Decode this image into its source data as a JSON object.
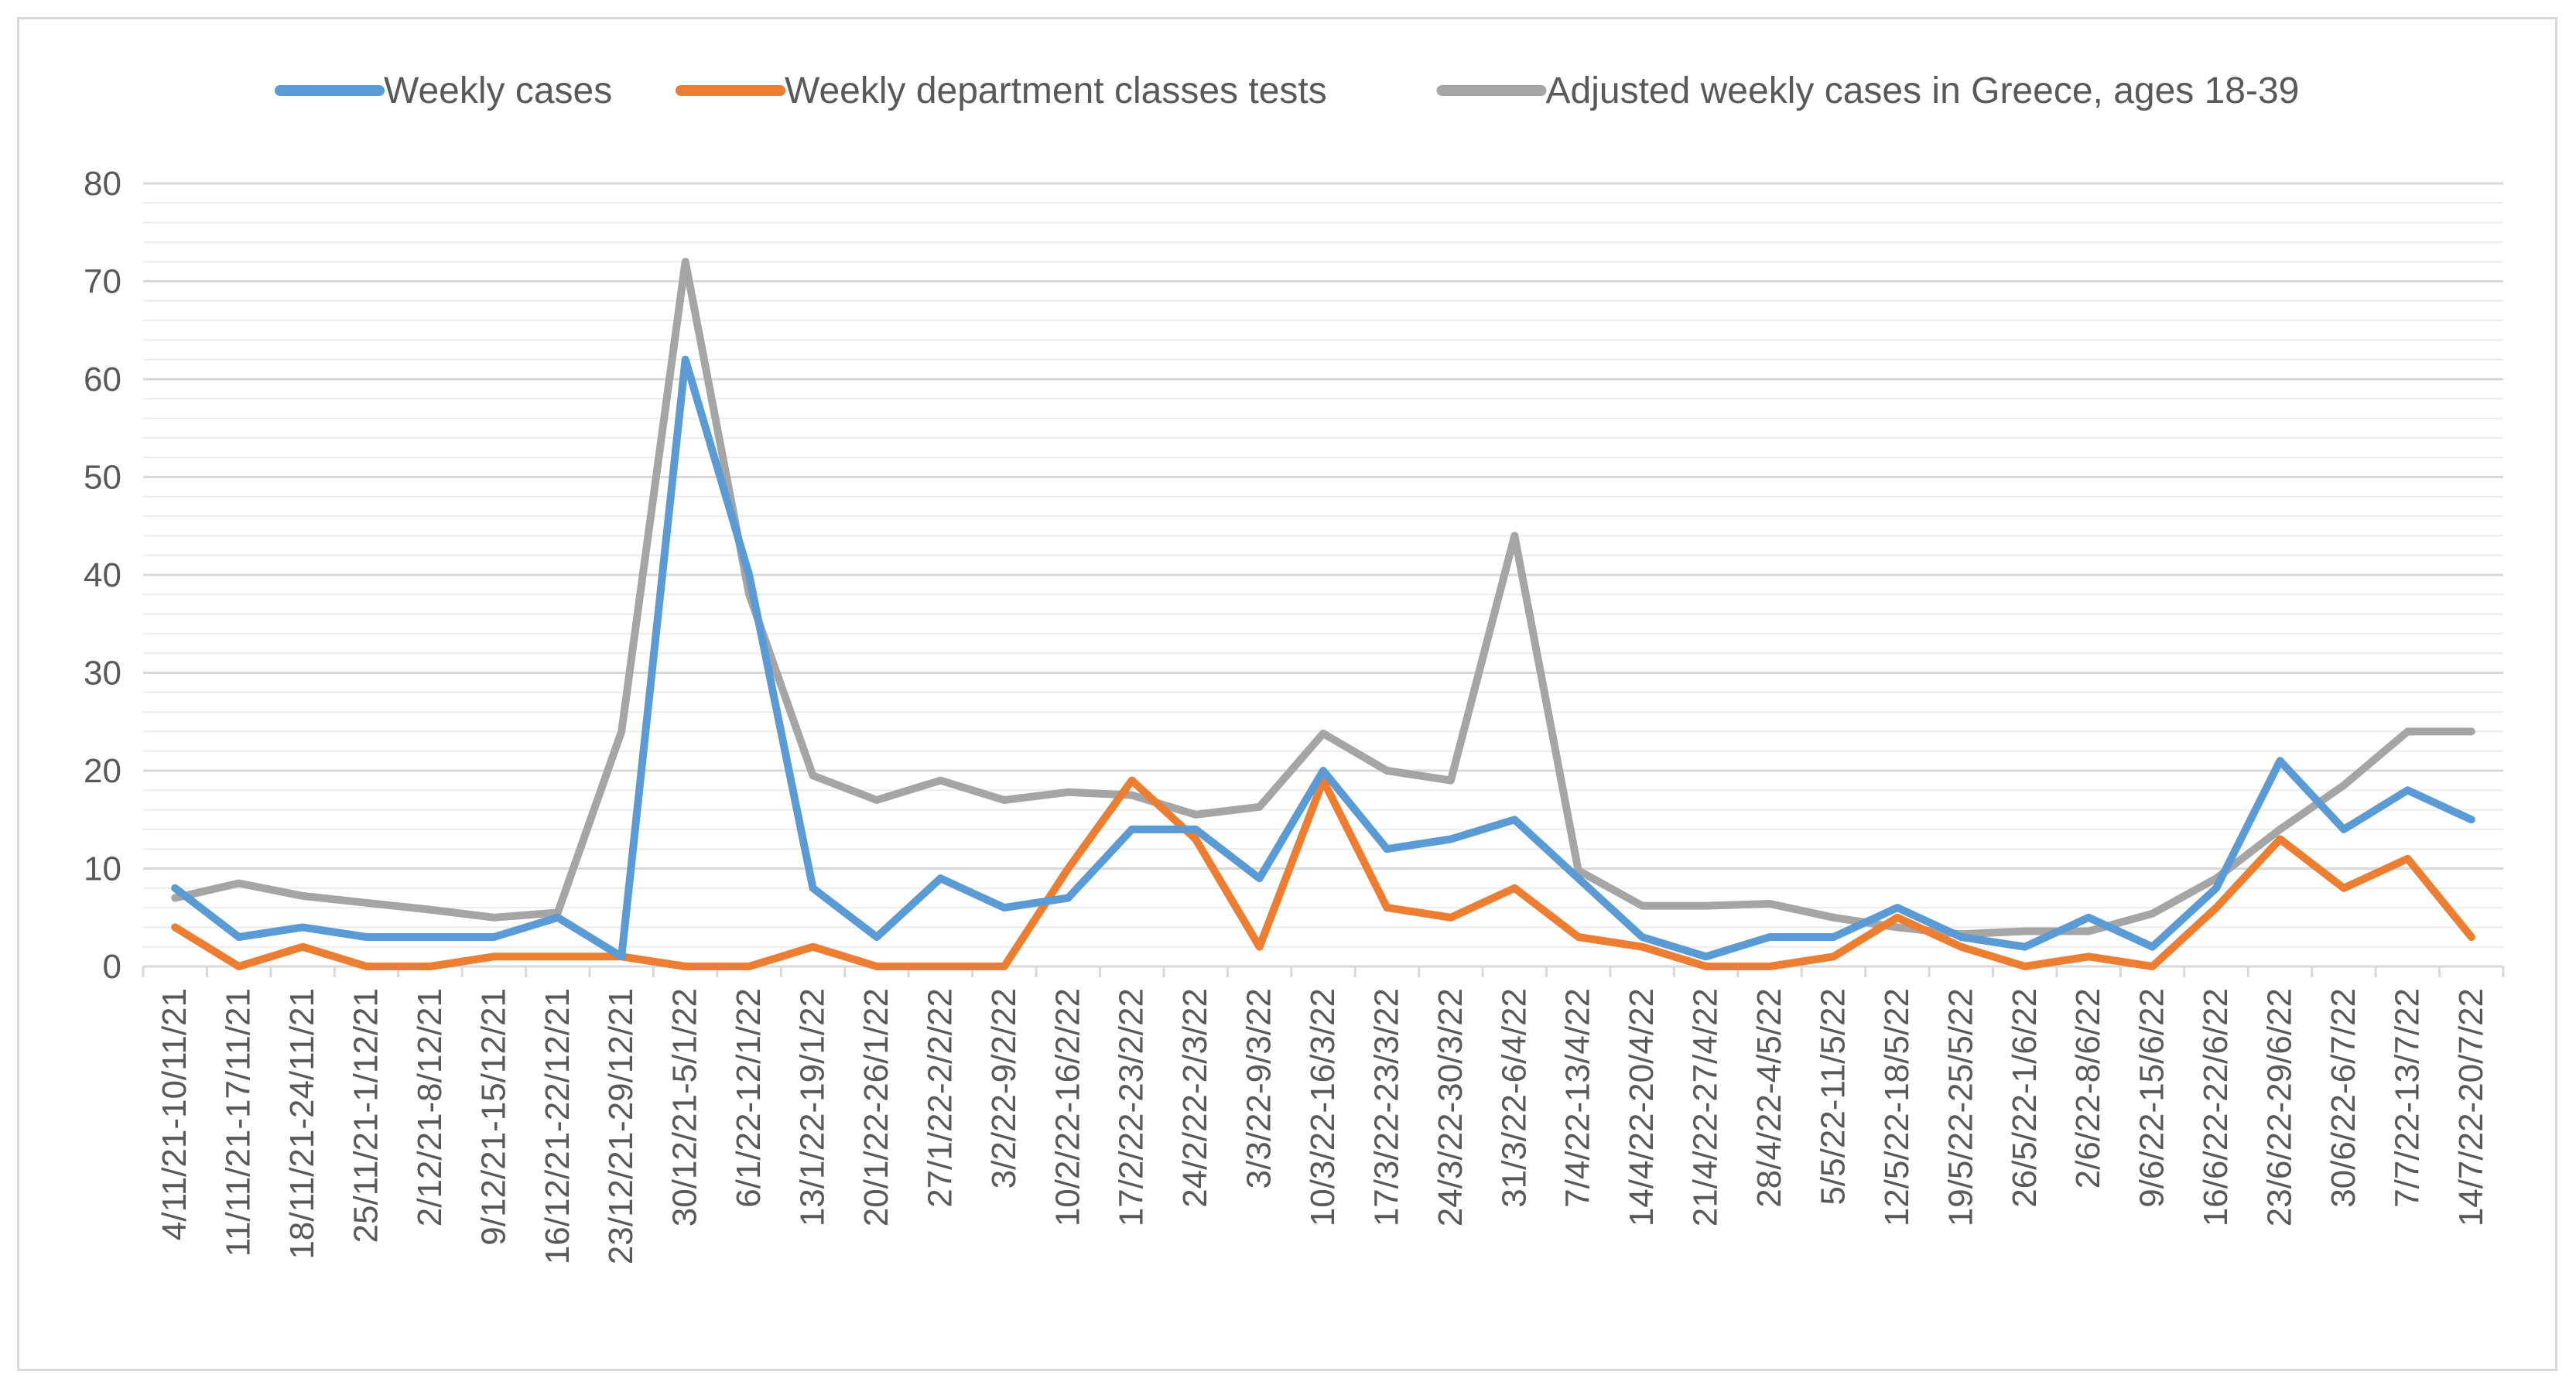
{
  "chart_data": {
    "type": "line",
    "title": "",
    "xlabel": "",
    "ylabel": "",
    "ylim": [
      0,
      80
    ],
    "yticks": [
      0,
      10,
      20,
      30,
      40,
      50,
      60,
      70,
      80
    ],
    "grid": true,
    "legend_position": "top",
    "categories": [
      "4/11/21-10/11/21",
      "11/11/21-17/11/21",
      "18/11/21-24/11/21",
      "25/11/21-1/12/21",
      "2/12/21-8/12/21",
      "9/12/21-15/12/21",
      "16/12/21-22/12/21",
      "23/12/21-29/12/21",
      "30/12/21-5/1/22",
      "6/1/22-12/1/22",
      "13/1/22-19/1/22",
      "20/1/22-26/1/22",
      "27/1/22-2/2/22",
      "3/2/22-9/2/22",
      "10/2/22-16/2/22",
      "17/2/22-23/2/22",
      "24/2/22-2/3/22",
      "3/3/22-9/3/22",
      "10/3/22-16/3/22",
      "17/3/22-23/3/22",
      "24/3/22-30/3/22",
      "31/3/22-6/4/22",
      "7/4/22-13/4/22",
      "14/4/22-20/4/22",
      "21/4/22-27/4/22",
      "28/4/22-4/5/22",
      "5/5/22-11/5/22",
      "12/5/22-18/5/22",
      "19/5/22-25/5/22",
      "26/5/22-1/6/22",
      "2/6/22-8/6/22",
      "9/6/22-15/6/22",
      "16/6/22-22/6/22",
      "23/6/22-29/6/22",
      "30/6/22-6/7/22",
      "7/7/22-13/7/22",
      "14/7/22-20/7/22"
    ],
    "series": [
      {
        "name": "Weekly cases",
        "color": "#5b9bd5",
        "values": [
          8,
          3,
          4,
          3,
          3,
          3,
          5,
          1,
          62,
          40,
          8,
          3,
          9,
          6,
          7,
          14,
          14,
          9,
          20,
          12,
          13,
          15,
          9,
          3,
          1,
          3,
          3,
          6,
          3,
          2,
          5,
          2,
          8,
          21,
          14,
          18,
          15
        ]
      },
      {
        "name": "Weekly department classes tests",
        "color": "#ed7d31",
        "values": [
          4,
          0,
          2,
          0,
          0,
          1,
          1,
          1,
          0,
          0,
          2,
          0,
          0,
          0,
          10,
          19,
          13,
          2,
          19,
          6,
          5,
          8,
          3,
          2,
          0,
          0,
          1,
          5,
          2,
          0,
          1,
          0,
          6,
          13,
          8,
          11,
          3
        ]
      },
      {
        "name": "Adjusted weekly cases in Greece, ages 18-39",
        "color": "#a5a5a5",
        "values": [
          7,
          8.5,
          7.2,
          6.5,
          5.8,
          5,
          5.5,
          24,
          72,
          38,
          19.5,
          17,
          19,
          17,
          17.8,
          17.5,
          15.5,
          16.3,
          23.8,
          20,
          19,
          44,
          9.8,
          6.2,
          6.2,
          6.4,
          5,
          4,
          3.3,
          3.6,
          3.6,
          5.4,
          9,
          14,
          18.5,
          24,
          24
        ]
      }
    ]
  }
}
